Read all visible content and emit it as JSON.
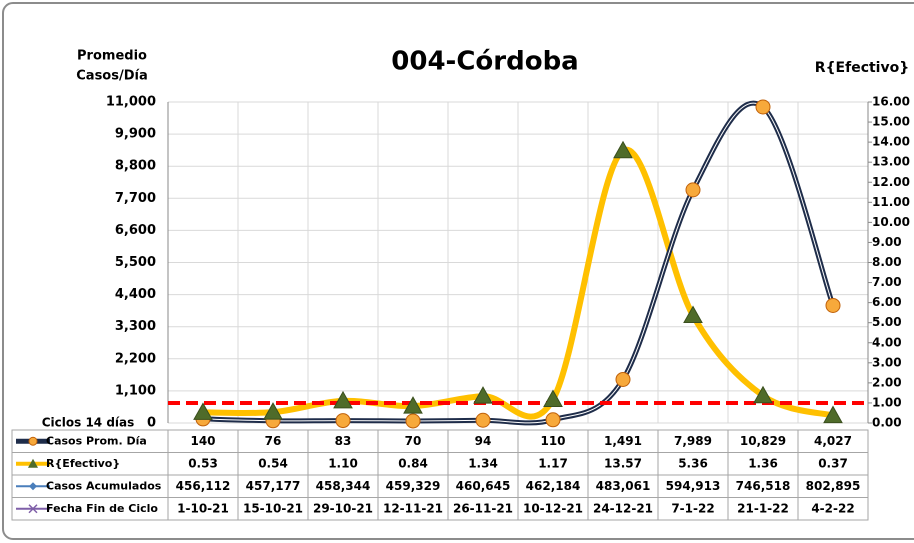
{
  "chart_data": {
    "type": "line",
    "title": "004-Córdoba",
    "y_label": [
      "Promedio",
      "Casos/Día"
    ],
    "y2_label": "R{Efectivo}",
    "x_label": "Ciclos 14 días",
    "category_row_name": "Fecha Fin de Ciclo",
    "category_row_color": "#7f5fa8",
    "categories": [
      "1-10-21",
      "15-10-21",
      "29-10-21",
      "12-11-21",
      "26-11-21",
      "10-12-21",
      "24-12-21",
      "7-1-22",
      "21-1-22",
      "4-2-22"
    ],
    "series": [
      {
        "name": "Casos Prom. Día",
        "color": "#1f2d4a",
        "marker_color": "#f7a93b",
        "marker": "circle",
        "values": [
          140,
          76,
          83,
          70,
          94,
          110,
          1491,
          7989,
          10829,
          4027
        ],
        "value_labels": [
          "140",
          "76",
          "83",
          "70",
          "94",
          "110",
          "1,491",
          "7,989",
          "10,829",
          "4,027"
        ]
      },
      {
        "name": "R{Efectivo}",
        "color": "#ffc000",
        "marker_color": "#4f6b2a",
        "marker": "triangle",
        "axis": "y2",
        "values": [
          0.53,
          0.54,
          1.1,
          0.84,
          1.34,
          1.17,
          13.57,
          5.36,
          1.36,
          0.37
        ],
        "value_labels": [
          "0.53",
          "0.54",
          "1.10",
          "0.84",
          "1.34",
          "1.17",
          "13.57",
          "5.36",
          "1.36",
          "0.37"
        ]
      },
      {
        "name": "Casos Acumulados",
        "color": "#4a7ebb",
        "marker": "diamond",
        "table_only": true,
        "values": [
          456112,
          457177,
          458344,
          459329,
          460645,
          462184,
          483061,
          594913,
          746518,
          802895
        ],
        "value_labels": [
          "456,112",
          "457,177",
          "458,344",
          "459,329",
          "460,645",
          "462,184",
          "483,061",
          "594,913",
          "746,518",
          "802,895"
        ]
      }
    ],
    "reference_line": {
      "value": 1,
      "axis": "y2",
      "color": "#ff0000"
    },
    "ylim": [
      0,
      11000
    ],
    "yticks": [
      0,
      {
        "value": 1100,
        "label": "1,100"
      },
      {
        "value": 2200,
        "label": "2,200"
      },
      {
        "value": 3300,
        "label": "3,300"
      },
      {
        "value": 4400,
        "label": "4,400"
      },
      {
        "value": 5500,
        "label": "5,500"
      },
      {
        "value": 6600,
        "label": "6,600"
      },
      {
        "value": 7700,
        "label": "7,700"
      },
      {
        "value": 8800,
        "label": "8,800"
      },
      {
        "value": 9900,
        "label": "9,900"
      },
      {
        "value": 11000,
        "label": "11,000"
      }
    ],
    "y2lim": [
      0,
      16
    ],
    "y2ticks": [
      {
        "value": 0,
        "label": "0.00"
      },
      {
        "value": 1,
        "label": "1.00"
      },
      {
        "value": 2,
        "label": "2.00"
      },
      {
        "value": 3,
        "label": "3.00"
      },
      {
        "value": 4,
        "label": "4.00"
      },
      {
        "value": 5,
        "label": "5.00"
      },
      {
        "value": 6,
        "label": "6.00"
      },
      {
        "value": 7,
        "label": "7.00"
      },
      {
        "value": 8,
        "label": "8.00"
      },
      {
        "value": 9,
        "label": "9.00"
      },
      {
        "value": 10,
        "label": "10.00"
      },
      {
        "value": 11,
        "label": "11.00"
      },
      {
        "value": 12,
        "label": "12.00"
      },
      {
        "value": 13,
        "label": "13.00"
      },
      {
        "value": 14,
        "label": "14.00"
      },
      {
        "value": 15,
        "label": "15.00"
      },
      {
        "value": 16,
        "label": "16.00"
      }
    ],
    "grid": true
  }
}
